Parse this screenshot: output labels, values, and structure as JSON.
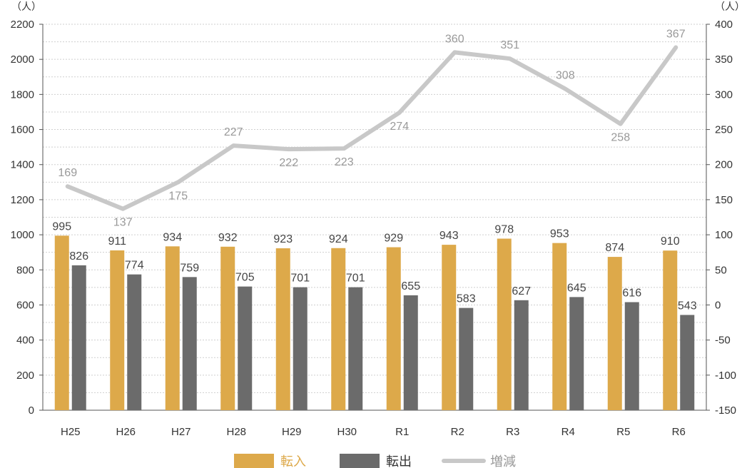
{
  "chart_data": {
    "type": "bar+line",
    "categories": [
      "H25",
      "H26",
      "H27",
      "H28",
      "H29",
      "H30",
      "R1",
      "R2",
      "R3",
      "R4",
      "R5",
      "R6"
    ],
    "series": [
      {
        "name": "転入",
        "type": "bar",
        "axis": "left",
        "color": "#DDA94A",
        "values": [
          995,
          911,
          934,
          932,
          923,
          924,
          929,
          943,
          978,
          953,
          874,
          910
        ]
      },
      {
        "name": "転出",
        "type": "bar",
        "axis": "left",
        "color": "#6B6B6B",
        "values": [
          826,
          774,
          759,
          705,
          701,
          701,
          655,
          583,
          627,
          645,
          616,
          543
        ]
      },
      {
        "name": "増減",
        "type": "line",
        "axis": "right",
        "color": "#C8C8C8",
        "values": [
          169,
          137,
          175,
          227,
          222,
          223,
          274,
          360,
          351,
          308,
          258,
          367
        ]
      }
    ],
    "left_axis": {
      "unit": "（人）",
      "ylim": [
        0,
        2200
      ],
      "ticks": [
        0,
        200,
        400,
        600,
        800,
        1000,
        1200,
        1400,
        1600,
        1800,
        2000,
        2200
      ]
    },
    "right_axis": {
      "unit": "（人）",
      "ylim": [
        -150,
        400
      ],
      "ticks": [
        -150,
        -100,
        -50,
        0,
        50,
        100,
        150,
        200,
        250,
        300,
        350,
        400
      ]
    },
    "legend": {
      "position": "bottom-center",
      "items": [
        {
          "label": "転入",
          "color": "#DDA94A",
          "text_color": "#DDA94A"
        },
        {
          "label": "転出",
          "color": "#6B6B6B",
          "text_color": "#333333"
        },
        {
          "label": "増減",
          "color": "#C8C8C8",
          "text_color": "#999999"
        }
      ]
    },
    "grid": "horizontal-dashed"
  }
}
